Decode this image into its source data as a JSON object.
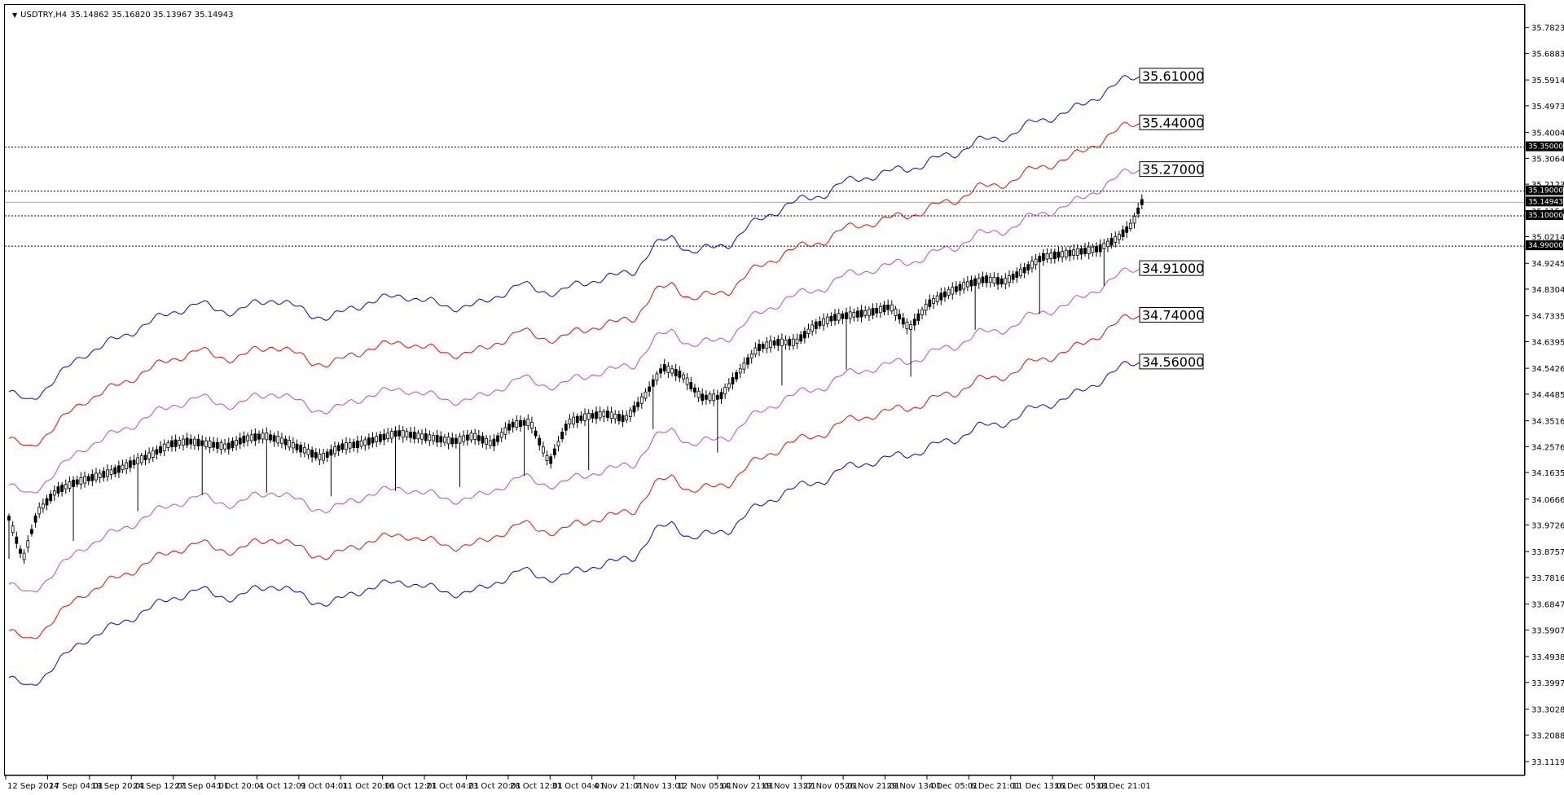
{
  "header": {
    "symbol": "USDTRY,H4",
    "ohlc": "35.14862 35.16820 35.13967 35.14943"
  },
  "colors": {
    "outer": "#0000ff",
    "middle": "#ff0000",
    "inner": "#cc44cc",
    "candle": "#000000",
    "grid": "#000000"
  },
  "chart_data": {
    "type": "line",
    "chart_type_note": "candlestick price with envelope bands",
    "y_axis_ticks": [
      "35.78235",
      "35.68830",
      "35.59140",
      "35.49735",
      "35.40045",
      "35.30640",
      "35.21235",
      "35.11545",
      "35.02140",
      "34.92450",
      "34.83045",
      "34.73355",
      "34.63950",
      "34.54260",
      "34.44855",
      "34.35165",
      "34.25760",
      "34.16355",
      "34.06665",
      "33.97260",
      "33.87570",
      "33.78165",
      "33.68475",
      "33.59070",
      "33.49380",
      "33.39975",
      "33.30285",
      "33.20880",
      "33.11190"
    ],
    "ylim": [
      33.1119,
      35.82
    ],
    "x_axis_ticks": [
      "12 Sep 2024",
      "17 Sep 04:01",
      "19 Sep 20:01",
      "24 Sep 12:01",
      "27 Sep 04:01",
      "1 Oct 20:01",
      "4 Oct 12:01",
      "9 Oct 04:01",
      "11 Oct 20:01",
      "16 Oct 12:01",
      "21 Oct 04:01",
      "23 Oct 20:01",
      "28 Oct 12:01",
      "31 Oct 04:01",
      "4 Nov 21:01",
      "7 Nov 13:01",
      "12 Nov 05:01",
      "14 Nov 21:01",
      "19 Nov 13:01",
      "22 Nov 05:01",
      "26 Nov 21:01",
      "29 Nov 13:01",
      "4 Dec 05:01",
      "6 Dec 21:01",
      "11 Dec 13:01",
      "16 Dec 05:01",
      "18 Dec 21:01"
    ],
    "horizontal_levels": [
      {
        "value": 35.35,
        "label": "35.35000"
      },
      {
        "value": 35.19,
        "label": "35.19000"
      },
      {
        "value": 35.1,
        "label": "35.10000"
      },
      {
        "value": 34.99,
        "label": "34.99000"
      }
    ],
    "current_price": {
      "value": 35.14943,
      "label": "35.14943"
    },
    "band_end_labels": [
      {
        "band": "outer_upper",
        "label": "35.61000"
      },
      {
        "band": "middle_upper",
        "label": "35.44000"
      },
      {
        "band": "inner_upper",
        "label": "35.27000"
      },
      {
        "band": "inner_lower",
        "label": "34.91000"
      },
      {
        "band": "middle_lower",
        "label": "34.74000"
      },
      {
        "band": "outer_lower",
        "label": "34.56000"
      }
    ],
    "price_path": [
      [
        0,
        34.0
      ],
      [
        1.5,
        33.85
      ],
      [
        3,
        34.02
      ],
      [
        5,
        34.1
      ],
      [
        7,
        34.13
      ],
      [
        9,
        34.15
      ],
      [
        11,
        34.17
      ],
      [
        13,
        34.2
      ],
      [
        15,
        34.23
      ],
      [
        17,
        34.27
      ],
      [
        19,
        34.28
      ],
      [
        21,
        34.27
      ],
      [
        23,
        34.26
      ],
      [
        25,
        34.29
      ],
      [
        27,
        34.3
      ],
      [
        29,
        34.28
      ],
      [
        31,
        34.25
      ],
      [
        33,
        34.22
      ],
      [
        35,
        34.26
      ],
      [
        37,
        34.27
      ],
      [
        39,
        34.29
      ],
      [
        41,
        34.31
      ],
      [
        43,
        34.3
      ],
      [
        45,
        34.29
      ],
      [
        47,
        34.28
      ],
      [
        49,
        34.3
      ],
      [
        51,
        34.27
      ],
      [
        53,
        34.34
      ],
      [
        55,
        34.35
      ],
      [
        57,
        34.2
      ],
      [
        59,
        34.35
      ],
      [
        61,
        34.37
      ],
      [
        63,
        34.38
      ],
      [
        65,
        34.36
      ],
      [
        67,
        34.44
      ],
      [
        69,
        34.55
      ],
      [
        71,
        34.52
      ],
      [
        73,
        34.44
      ],
      [
        75,
        34.44
      ],
      [
        77,
        34.53
      ],
      [
        79,
        34.62
      ],
      [
        81,
        34.64
      ],
      [
        83,
        34.64
      ],
      [
        85,
        34.7
      ],
      [
        87,
        34.73
      ],
      [
        89,
        34.74
      ],
      [
        91,
        34.75
      ],
      [
        93,
        34.77
      ],
      [
        95,
        34.69
      ],
      [
        97,
        34.78
      ],
      [
        99,
        34.82
      ],
      [
        101,
        34.85
      ],
      [
        103,
        34.87
      ],
      [
        105,
        34.86
      ],
      [
        107,
        34.9
      ],
      [
        109,
        34.95
      ],
      [
        111,
        34.96
      ],
      [
        113,
        34.97
      ],
      [
        115,
        34.98
      ],
      [
        117,
        35.02
      ],
      [
        118.5,
        35.07
      ],
      [
        119.5,
        35.15
      ]
    ],
    "bands_center": [
      [
        0,
        33.94
      ],
      [
        2,
        33.9
      ],
      [
        4,
        33.96
      ],
      [
        6,
        34.02
      ],
      [
        8,
        34.08
      ],
      [
        10,
        34.11
      ],
      [
        12,
        34.14
      ],
      [
        14,
        34.18
      ],
      [
        16,
        34.21
      ],
      [
        18,
        34.24
      ],
      [
        20,
        34.26
      ],
      [
        22,
        34.24
      ],
      [
        24,
        34.23
      ],
      [
        26,
        34.26
      ],
      [
        28,
        34.28
      ],
      [
        30,
        34.25
      ],
      [
        32,
        34.22
      ],
      [
        34,
        34.21
      ],
      [
        36,
        34.24
      ],
      [
        38,
        34.27
      ],
      [
        40,
        34.28
      ],
      [
        42,
        34.29
      ],
      [
        44,
        34.27
      ],
      [
        46,
        34.25
      ],
      [
        48,
        34.25
      ],
      [
        50,
        34.26
      ],
      [
        52,
        34.3
      ],
      [
        54,
        34.33
      ],
      [
        56,
        34.31
      ],
      [
        58,
        34.3
      ],
      [
        60,
        34.33
      ],
      [
        62,
        34.35
      ],
      [
        64,
        34.36
      ],
      [
        66,
        34.38
      ],
      [
        68,
        34.47
      ],
      [
        70,
        34.5
      ],
      [
        72,
        34.45
      ],
      [
        74,
        34.46
      ],
      [
        76,
        34.48
      ],
      [
        78,
        34.54
      ],
      [
        80,
        34.58
      ],
      [
        82,
        34.62
      ],
      [
        84,
        34.64
      ],
      [
        86,
        34.66
      ],
      [
        88,
        34.7
      ],
      [
        90,
        34.72
      ],
      [
        92,
        34.73
      ],
      [
        94,
        34.75
      ],
      [
        96,
        34.76
      ],
      [
        98,
        34.79
      ],
      [
        100,
        34.81
      ],
      [
        102,
        34.85
      ],
      [
        104,
        34.86
      ],
      [
        106,
        34.88
      ],
      [
        108,
        34.92
      ],
      [
        110,
        34.94
      ],
      [
        112,
        34.96
      ],
      [
        114,
        35.0
      ],
      [
        116,
        35.04
      ],
      [
        118,
        35.08
      ],
      [
        119.5,
        35.09
      ]
    ],
    "band_offsets": {
      "inner": 0.18,
      "middle": 0.35,
      "outer": 0.52
    },
    "x_count": 120,
    "xlabel": "",
    "ylabel": ""
  }
}
